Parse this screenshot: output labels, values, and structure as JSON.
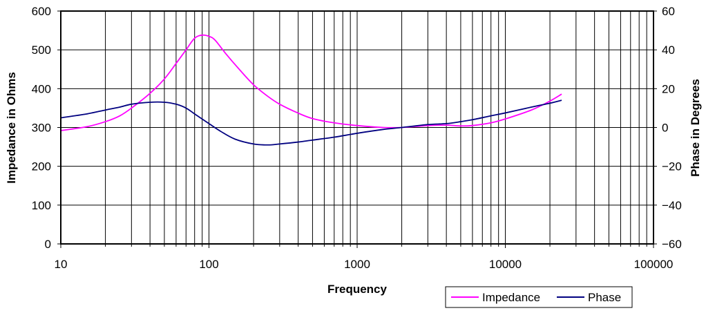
{
  "chart_data": {
    "type": "line",
    "xlabel": "Frequency",
    "ylabel": "Impedance in Ohms",
    "y2label": "Phase in Degrees",
    "x_scale": "log",
    "xlim": [
      10,
      100000
    ],
    "ylim": [
      0,
      600
    ],
    "y2lim": [
      -60,
      60
    ],
    "x_ticks": [
      "10",
      "100",
      "1000",
      "10000",
      "100000"
    ],
    "y_ticks": [
      "0",
      "100",
      "200",
      "300",
      "400",
      "500",
      "600"
    ],
    "y2_ticks": [
      "-60",
      "-40",
      "-20",
      "0",
      "20",
      "40",
      "60"
    ],
    "grid": {
      "x_major": true,
      "x_minor": true,
      "y_major": true
    },
    "legend": {
      "position": "bottom-right"
    },
    "series": [
      {
        "name": "Impedance",
        "axis": "left",
        "color": "#ff00ff",
        "x": [
          10,
          15,
          20,
          25,
          30,
          40,
          50,
          60,
          70,
          80,
          90,
          100,
          110,
          130,
          160,
          200,
          250,
          300,
          400,
          500,
          700,
          1000,
          1500,
          2000,
          3000,
          4000,
          5000,
          6000,
          8000,
          10000,
          15000,
          20000,
          24000
        ],
        "values": [
          292,
          302,
          315,
          330,
          350,
          388,
          425,
          465,
          500,
          530,
          538,
          535,
          525,
          490,
          450,
          410,
          380,
          360,
          337,
          323,
          312,
          305,
          300,
          300,
          305,
          306,
          304,
          305,
          312,
          322,
          345,
          368,
          386
        ]
      },
      {
        "name": "Phase",
        "axis": "right",
        "color": "#000080",
        "x": [
          10,
          15,
          20,
          25,
          30,
          40,
          50,
          60,
          70,
          80,
          100,
          120,
          150,
          200,
          250,
          300,
          400,
          500,
          700,
          1000,
          1500,
          2000,
          3000,
          4000,
          5000,
          6000,
          8000,
          10000,
          15000,
          20000,
          24000
        ],
        "values": [
          5,
          7,
          9,
          10.5,
          12,
          13,
          13,
          12,
          10,
          7,
          2,
          -2,
          -6,
          -8.5,
          -9,
          -8.5,
          -7.5,
          -6.5,
          -5,
          -3,
          -1,
          0,
          1.5,
          2,
          3,
          4,
          6,
          7.5,
          10.5,
          12.5,
          14
        ]
      }
    ]
  }
}
